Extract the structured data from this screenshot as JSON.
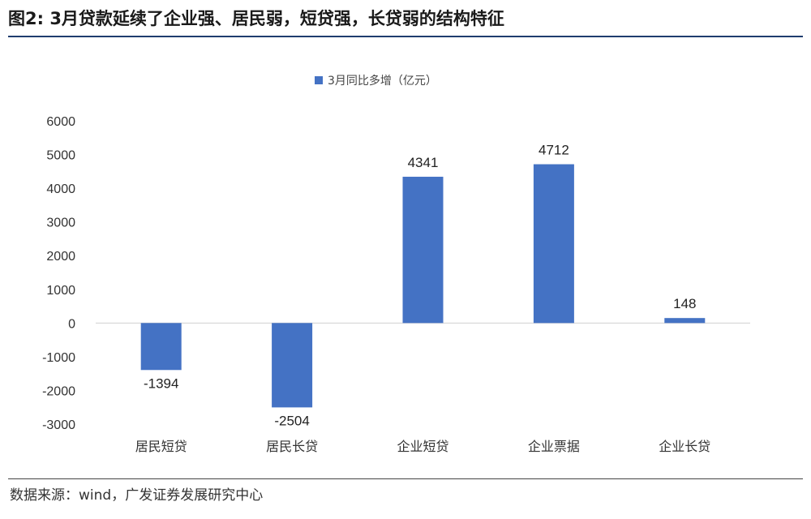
{
  "figure": {
    "title": "图2: 3月贷款延续了企业强、居民弱，短贷强，长贷弱的结构特征",
    "source": "数据来源：wind，广发证券发展研究中心"
  },
  "chart_data": {
    "type": "bar",
    "categories": [
      "居民短贷",
      "居民长贷",
      "企业短贷",
      "企业票据",
      "企业长贷"
    ],
    "series": [
      {
        "name": "3月同比多增（亿元）",
        "values": [
          -1394,
          -2504,
          4341,
          4712,
          148
        ]
      }
    ],
    "ylim": [
      -3000,
      6000
    ],
    "yticks": [
      6000,
      5000,
      4000,
      3000,
      2000,
      1000,
      0,
      -1000,
      -2000,
      -3000
    ],
    "grid": false,
    "legend": "top-center",
    "bar_color": "#4472C4"
  }
}
